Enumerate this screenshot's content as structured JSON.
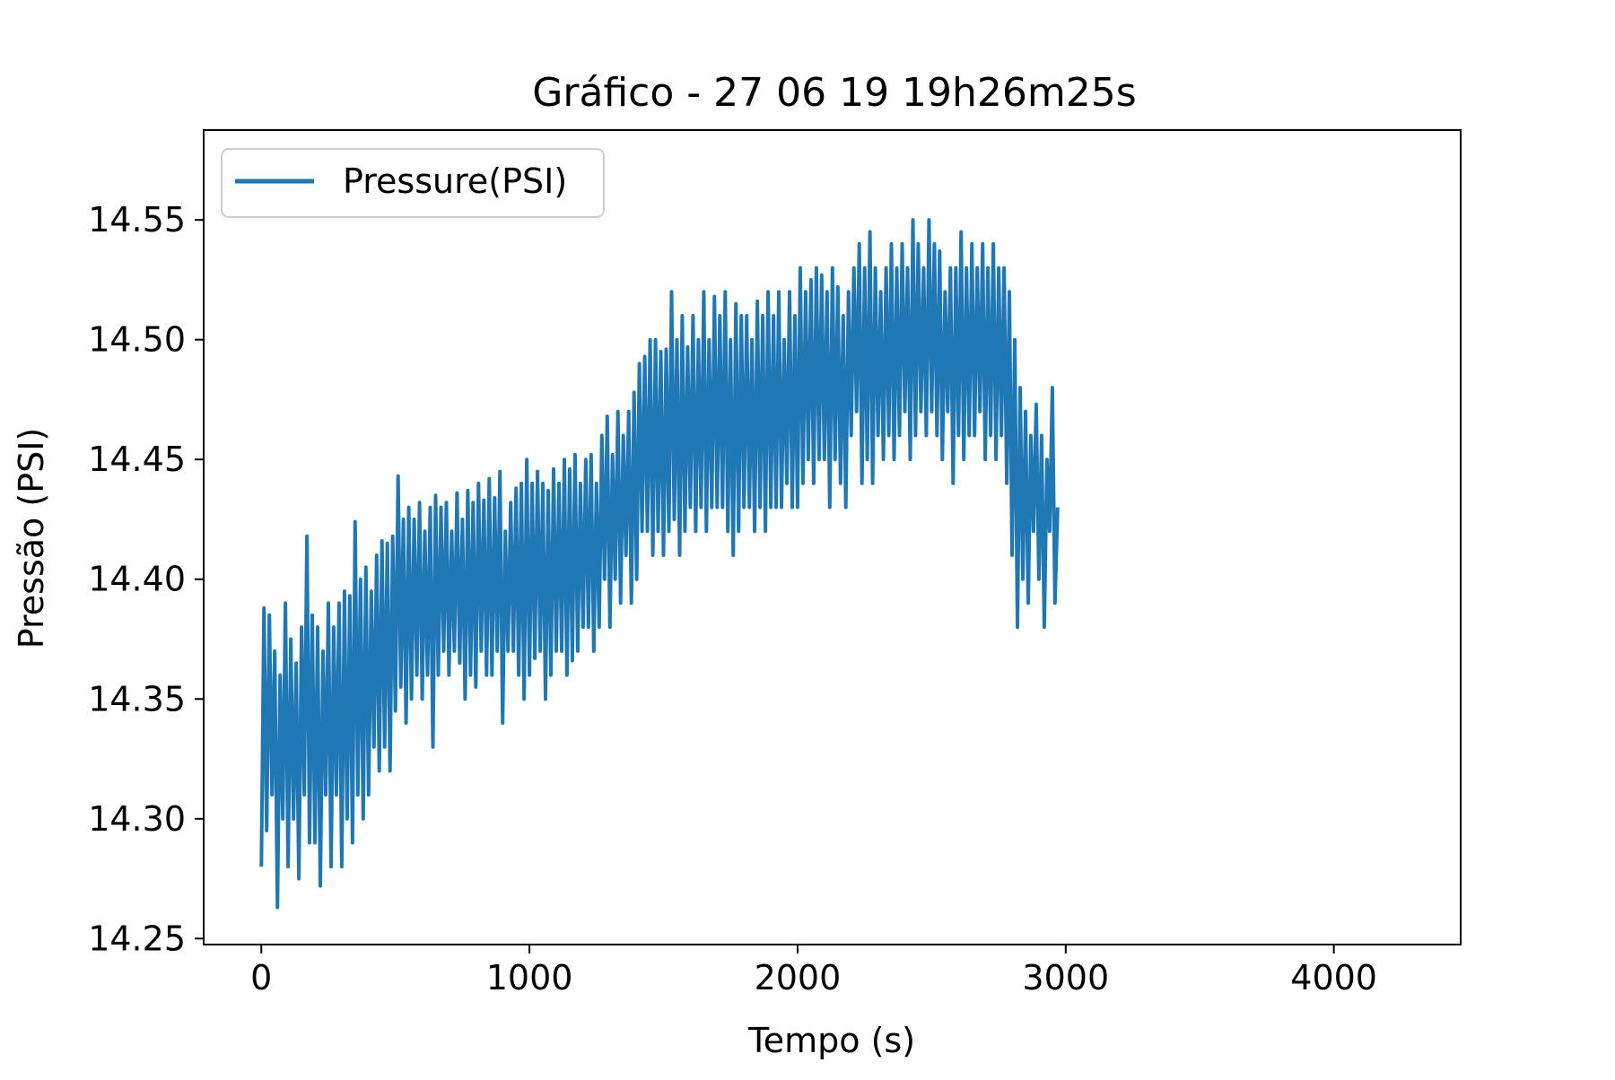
{
  "chart_data": {
    "type": "line",
    "title": "Gráfico - 27 06 19 19h26m25s",
    "xlabel": "Tempo (s)",
    "ylabel": "Pressão (PSI)",
    "xlim": [
      -215,
      4473
    ],
    "ylim": [
      14.2475,
      14.5875
    ],
    "xticks": [
      0,
      1000,
      2000,
      3000,
      4000
    ],
    "xtick_labels": [
      "0",
      "1000",
      "2000",
      "3000",
      "4000"
    ],
    "yticks": [
      14.25,
      14.3,
      14.35,
      14.4,
      14.45,
      14.5,
      14.55
    ],
    "ytick_labels": [
      "14.25",
      "14.30",
      "14.35",
      "14.40",
      "14.45",
      "14.50",
      "14.55"
    ],
    "grid": false,
    "legend": {
      "position": "upper left",
      "entries": [
        "Pressure(PSI)"
      ]
    },
    "series": [
      {
        "name": "Pressure(PSI)",
        "color": "#1f77b4",
        "x_start": 0,
        "x_step": 10,
        "values": [
          14.28,
          14.388,
          14.295,
          14.385,
          14.31,
          14.37,
          14.263,
          14.36,
          14.3,
          14.39,
          14.28,
          14.375,
          14.3,
          14.365,
          14.275,
          14.38,
          14.31,
          14.418,
          14.29,
          14.385,
          14.29,
          14.38,
          14.272,
          14.37,
          14.31,
          14.39,
          14.28,
          14.38,
          14.31,
          14.39,
          14.28,
          14.395,
          14.3,
          14.393,
          14.29,
          14.424,
          14.31,
          14.4,
          14.3,
          14.405,
          14.31,
          14.395,
          14.33,
          14.41,
          14.32,
          14.416,
          14.33,
          14.415,
          14.32,
          14.418,
          14.345,
          14.443,
          14.355,
          14.425,
          14.34,
          14.43,
          14.35,
          14.425,
          14.36,
          14.432,
          14.35,
          14.42,
          14.36,
          14.43,
          14.33,
          14.435,
          14.36,
          14.43,
          14.37,
          14.432,
          14.36,
          14.42,
          14.37,
          14.436,
          14.365,
          14.425,
          14.35,
          14.437,
          14.36,
          14.432,
          14.355,
          14.44,
          14.37,
          14.433,
          14.36,
          14.442,
          14.36,
          14.434,
          14.37,
          14.445,
          14.34,
          14.42,
          14.37,
          14.432,
          14.37,
          14.438,
          14.36,
          14.44,
          14.35,
          14.45,
          14.36,
          14.44,
          14.367,
          14.445,
          14.37,
          14.44,
          14.35,
          14.437,
          14.36,
          14.446,
          14.37,
          14.44,
          14.37,
          14.45,
          14.36,
          14.446,
          14.366,
          14.452,
          14.37,
          14.44,
          14.38,
          14.45,
          14.38,
          14.452,
          14.37,
          14.44,
          14.38,
          14.46,
          14.4,
          14.468,
          14.38,
          14.452,
          14.4,
          14.47,
          14.39,
          14.46,
          14.41,
          14.47,
          14.39,
          14.478,
          14.4,
          14.49,
          14.42,
          14.493,
          14.42,
          14.5,
          14.41,
          14.5,
          14.42,
          14.495,
          14.41,
          14.496,
          14.42,
          14.52,
          14.425,
          14.5,
          14.41,
          14.51,
          14.42,
          14.497,
          14.43,
          14.51,
          14.42,
          14.5,
          14.43,
          14.52,
          14.42,
          14.5,
          14.43,
          14.518,
          14.43,
          14.51,
          14.43,
          14.52,
          14.42,
          14.5,
          14.41,
          14.515,
          14.42,
          14.51,
          14.43,
          14.51,
          14.43,
          14.5,
          14.42,
          14.516,
          14.43,
          14.51,
          14.42,
          14.52,
          14.43,
          14.51,
          14.43,
          14.52,
          14.43,
          14.5,
          14.44,
          14.52,
          14.43,
          14.51,
          14.43,
          14.53,
          14.44,
          14.52,
          14.45,
          14.525,
          14.44,
          14.53,
          14.45,
          14.527,
          14.45,
          14.52,
          14.43,
          14.53,
          14.45,
          14.522,
          14.44,
          14.51,
          14.43,
          14.52,
          14.46,
          14.53,
          14.47,
          14.54,
          14.44,
          14.53,
          14.45,
          14.545,
          14.44,
          14.53,
          14.46,
          14.52,
          14.45,
          14.53,
          14.46,
          14.54,
          14.45,
          14.53,
          14.46,
          14.54,
          14.47,
          14.53,
          14.45,
          14.55,
          14.46,
          14.54,
          14.47,
          14.53,
          14.46,
          14.55,
          14.47,
          14.54,
          14.46,
          14.537,
          14.45,
          14.52,
          14.47,
          14.53,
          14.44,
          14.53,
          14.46,
          14.545,
          14.45,
          14.53,
          14.46,
          14.54,
          14.46,
          14.53,
          14.47,
          14.54,
          14.45,
          14.53,
          14.46,
          14.54,
          14.45,
          14.53,
          14.46,
          14.53,
          14.44,
          14.52,
          14.41,
          14.5,
          14.38,
          14.48,
          14.4,
          14.47,
          14.39,
          14.46,
          14.42,
          14.473,
          14.4,
          14.46,
          14.38,
          14.45,
          14.42,
          14.48,
          14.39,
          14.43
        ]
      }
    ]
  }
}
